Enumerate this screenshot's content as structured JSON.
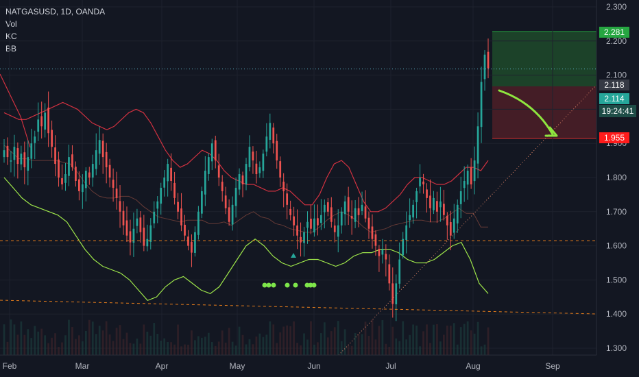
{
  "header": {
    "symbol_line": "NATGASUSD, 1D, OANDA",
    "indicators": [
      "Vol",
      "KC",
      "BB"
    ]
  },
  "price_axis": {
    "ticks": [
      "2.300",
      "2.200",
      "2.100",
      "2.000",
      "1.900",
      "1.800",
      "1.700",
      "1.600",
      "1.500",
      "1.400",
      "1.300"
    ],
    "tags": {
      "target": "2.281",
      "last": "2.118",
      "bid": "2.114",
      "countdown": "19:24:41",
      "stop": "1.955"
    }
  },
  "time_axis": {
    "labels": [
      "Feb",
      "Mar",
      "Apr",
      "May",
      "Jun",
      "Jul",
      "Aug",
      "Sep"
    ]
  },
  "colors": {
    "background": "#131722",
    "up_candle": "#26a69a",
    "down_candle": "#ef5350",
    "target_tag": "#26a641",
    "stop_tag": "#ff1c1c",
    "last_tag": "#363a45",
    "bid_tag": "#26a69a",
    "keltner": "#f23645",
    "bollinger_lower": "#9ee64a",
    "arrow": "#8ee53f",
    "dashed_support": "#e87e1b"
  },
  "chart_data": {
    "type": "candlestick",
    "symbol": "NATGASUSD",
    "timeframe": "1D",
    "broker": "OANDA",
    "ylim": [
      1.28,
      2.32
    ],
    "x_labels": [
      "Feb",
      "Mar",
      "Apr",
      "May",
      "Jun",
      "Jul",
      "Aug",
      "Sep"
    ],
    "close_series": [
      1.88,
      1.86,
      1.85,
      1.89,
      1.84,
      1.87,
      1.83,
      1.86,
      1.9,
      1.92,
      1.97,
      1.95,
      1.99,
      1.93,
      1.89,
      1.84,
      1.8,
      1.78,
      1.81,
      1.86,
      1.83,
      1.79,
      1.76,
      1.78,
      1.82,
      1.8,
      1.84,
      1.88,
      1.91,
      1.86,
      1.83,
      1.8,
      1.77,
      1.74,
      1.7,
      1.66,
      1.63,
      1.61,
      1.65,
      1.68,
      1.64,
      1.6,
      1.62,
      1.66,
      1.7,
      1.73,
      1.77,
      1.8,
      1.84,
      1.79,
      1.74,
      1.7,
      1.66,
      1.63,
      1.6,
      1.58,
      1.64,
      1.7,
      1.76,
      1.82,
      1.86,
      1.9,
      1.85,
      1.8,
      1.76,
      1.71,
      1.67,
      1.72,
      1.77,
      1.81,
      1.78,
      1.84,
      1.89,
      1.85,
      1.81,
      1.83,
      1.87,
      1.92,
      1.96,
      1.9,
      1.85,
      1.8,
      1.76,
      1.72,
      1.69,
      1.66,
      1.63,
      1.61,
      1.64,
      1.67,
      1.65,
      1.68,
      1.66,
      1.69,
      1.72,
      1.7,
      1.67,
      1.64,
      1.66,
      1.7,
      1.73,
      1.7,
      1.68,
      1.71,
      1.69,
      1.72,
      1.68,
      1.65,
      1.62,
      1.6,
      1.57,
      1.59,
      1.56,
      1.49,
      1.43,
      1.49,
      1.56,
      1.62,
      1.66,
      1.69,
      1.72,
      1.76,
      1.8,
      1.78,
      1.74,
      1.71,
      1.74,
      1.7,
      1.73,
      1.69,
      1.66,
      1.63,
      1.68,
      1.72,
      1.76,
      1.79,
      1.82,
      1.78,
      1.85,
      1.95,
      2.08,
      2.16,
      2.12
    ],
    "keltner_upper": [
      1.99,
      1.98,
      1.97,
      1.97,
      1.98,
      1.99,
      2.0,
      2.01,
      2.02,
      2.01,
      2.0,
      1.98,
      1.96,
      1.95,
      1.94,
      1.95,
      1.97,
      1.99,
      2.0,
      1.99,
      1.96,
      1.92,
      1.88,
      1.85,
      1.83,
      1.84,
      1.86,
      1.88,
      1.87,
      1.85,
      1.82,
      1.8,
      1.79,
      1.78,
      1.78,
      1.77,
      1.76,
      1.76,
      1.77,
      1.76,
      1.74,
      1.72,
      1.72,
      1.75,
      1.8,
      1.84,
      1.85,
      1.83,
      1.78,
      1.73,
      1.7,
      1.7,
      1.71,
      1.73,
      1.75,
      1.78,
      1.8,
      1.8,
      1.79,
      1.78,
      1.78,
      1.79,
      1.81,
      1.83,
      1.83,
      1.82,
      1.85
    ],
    "bollinger_lower": [
      1.8,
      1.77,
      1.74,
      1.72,
      1.71,
      1.7,
      1.69,
      1.67,
      1.63,
      1.59,
      1.56,
      1.54,
      1.53,
      1.52,
      1.5,
      1.47,
      1.44,
      1.45,
      1.48,
      1.5,
      1.51,
      1.49,
      1.47,
      1.46,
      1.48,
      1.52,
      1.56,
      1.6,
      1.62,
      1.6,
      1.57,
      1.55,
      1.54,
      1.55,
      1.56,
      1.56,
      1.55,
      1.54,
      1.55,
      1.57,
      1.58,
      1.58,
      1.59,
      1.59,
      1.58,
      1.56,
      1.55,
      1.55,
      1.56,
      1.58,
      1.6,
      1.61,
      1.56,
      1.49,
      1.46
    ],
    "signal_dots": 8,
    "trade_box": {
      "entry": 2.118,
      "target": 2.281,
      "stop": 1.955
    },
    "support_lines": [
      1.615,
      1.4
    ]
  }
}
